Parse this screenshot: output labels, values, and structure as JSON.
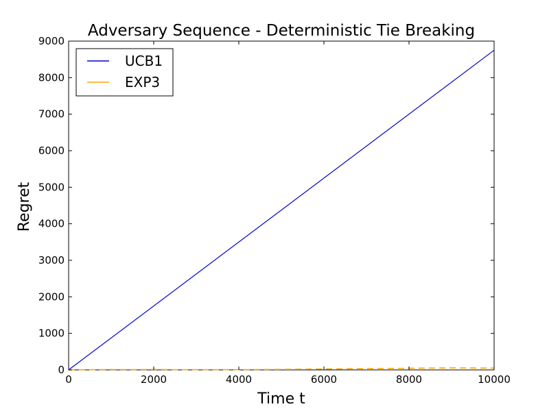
{
  "chart_data": {
    "type": "line",
    "title": "Adversary Sequence - Deterministic Tie Breaking",
    "xlabel": "Time t",
    "ylabel": "Regret",
    "xlim": [
      0,
      10000
    ],
    "ylim": [
      0,
      9000
    ],
    "x_ticks": [
      0,
      2000,
      4000,
      6000,
      8000,
      10000
    ],
    "y_ticks": [
      0,
      1000,
      2000,
      3000,
      4000,
      5000,
      6000,
      7000,
      8000,
      9000
    ],
    "grid": false,
    "legend_position": "upper left",
    "series": [
      {
        "name": "UCB1",
        "color": "#0000cc",
        "x": [
          0,
          10000
        ],
        "y": [
          0,
          8750
        ]
      },
      {
        "name": "EXP3",
        "color": "#ffa500",
        "x": [
          0,
          500,
          1000,
          1500,
          2000,
          2500,
          3000,
          3500,
          4000,
          4500,
          5000,
          5500,
          6000,
          6500,
          7000,
          7500,
          8000,
          8500,
          9000,
          9500,
          10000
        ],
        "y": [
          0,
          5,
          10,
          8,
          12,
          6,
          5,
          4,
          6,
          10,
          15,
          20,
          25,
          30,
          35,
          40,
          45,
          50,
          55,
          52,
          50
        ]
      }
    ]
  }
}
